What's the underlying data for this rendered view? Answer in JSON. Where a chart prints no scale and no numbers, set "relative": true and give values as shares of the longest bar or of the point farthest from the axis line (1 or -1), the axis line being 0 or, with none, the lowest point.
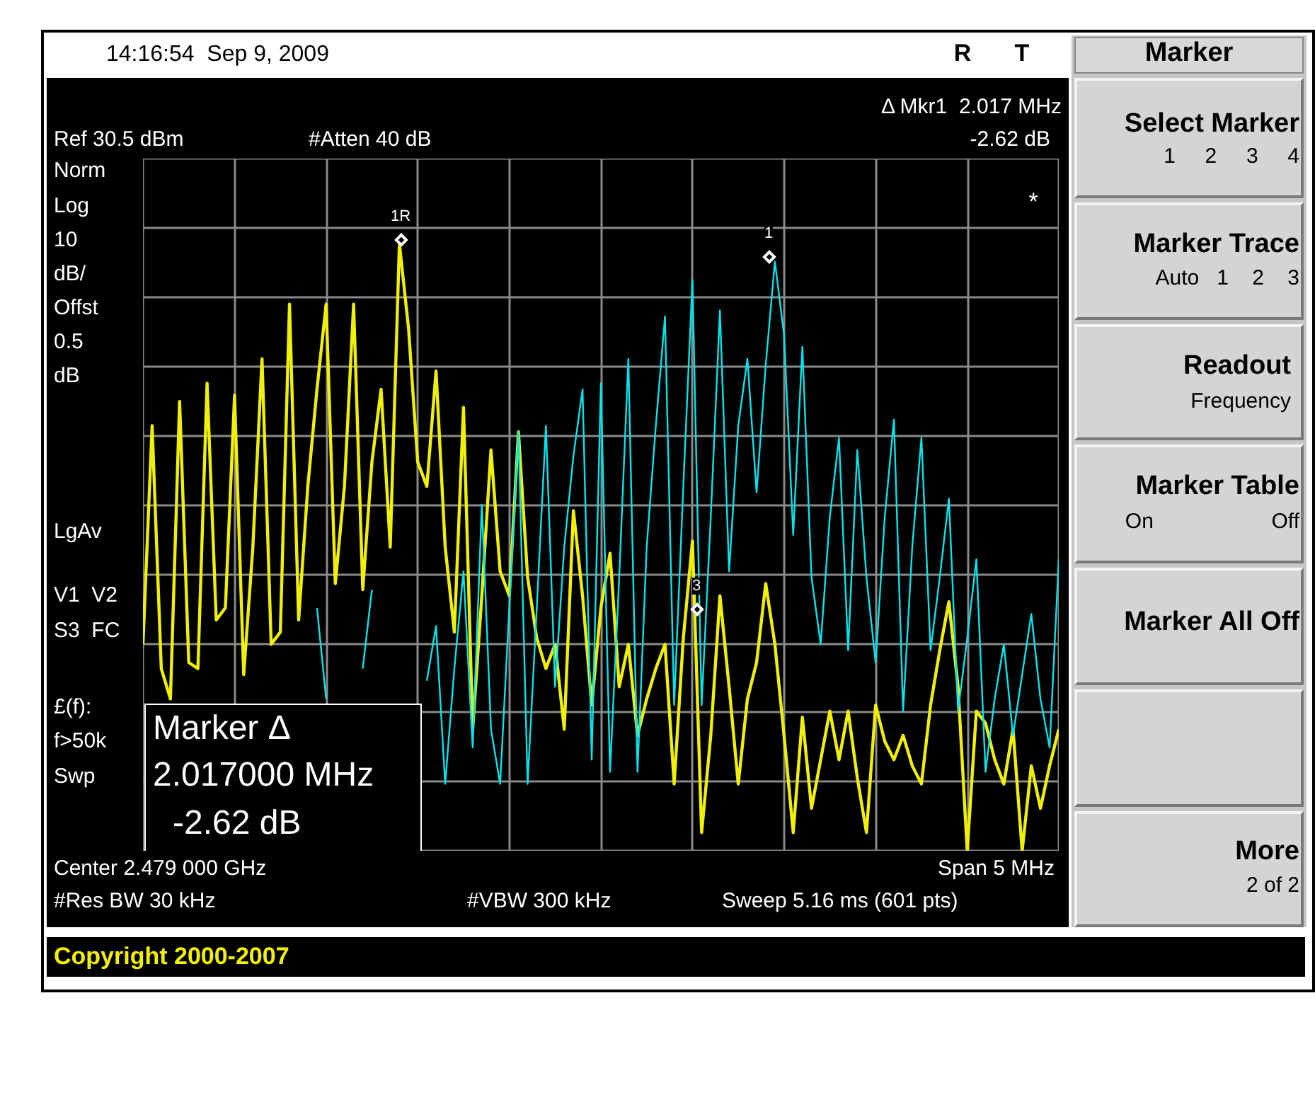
{
  "chart_data": {
    "type": "line",
    "relative": true,
    "grid": true,
    "tick_labels": false,
    "categories": [
      null,
      null,
      null,
      null,
      null,
      null,
      null,
      null,
      null,
      null,
      null,
      null,
      null,
      null,
      null,
      null,
      null,
      null,
      null,
      null,
      null,
      null,
      null,
      null,
      null,
      null,
      null,
      null,
      null,
      null,
      null,
      null,
      null,
      null,
      null,
      null,
      null,
      null,
      null,
      null,
      null,
      null,
      null,
      null,
      null,
      null,
      null,
      null,
      null,
      null,
      null,
      null,
      null,
      null,
      null,
      null,
      null,
      null,
      null,
      null,
      null,
      null,
      null,
      null,
      null,
      null,
      null,
      null,
      null,
      null,
      null,
      null,
      null,
      null,
      null,
      null,
      null,
      null,
      null,
      null,
      null,
      null,
      null,
      null,
      null,
      null,
      null,
      null,
      null,
      null,
      null,
      null,
      null,
      null,
      null,
      null,
      null,
      null,
      null,
      null,
      null
    ],
    "series": [
      {
        "color": "#f0f000",
        "values": [
          0.34,
          0.7,
          0.3,
          0.25,
          0.74,
          0.31,
          0.3,
          0.77,
          0.38,
          0.4,
          0.75,
          0.29,
          0.5,
          0.81,
          0.34,
          0.36,
          0.9,
          0.38,
          0.6,
          0.76,
          0.9,
          0.44,
          0.6,
          0.9,
          0.43,
          0.64,
          0.76,
          0.5,
          1,
          0.86,
          0.64,
          0.6,
          0.79,
          0.5,
          0.36,
          0.73,
          0.2,
          0.42,
          0.66,
          0.46,
          0.42,
          0.69,
          0.45,
          0.35,
          0.3,
          0.34,
          0.2,
          0.56,
          0.42,
          0.24,
          0.4,
          0.49,
          0.27,
          0.34,
          0.19,
          0.25,
          0.3,
          0.34,
          0.11,
          0.35,
          0.51,
          0.03,
          0.19,
          0.42,
          0.27,
          0.11,
          0.25,
          0.31,
          0.44,
          0.34,
          0.19,
          0.03,
          0.22,
          0.07,
          0.15,
          0.23,
          0.15,
          0.23,
          0.12,
          0.03,
          0.24,
          0.18,
          0.15,
          0.19,
          0.14,
          0.11,
          0.24,
          0.33,
          0.41,
          0.27,
          0,
          0.23,
          0.21,
          0.15,
          0.11,
          0.2,
          0,
          0.14,
          0.07,
          0.14,
          0.2
        ]
      },
      {
        "color": "#00e5ee",
        "values": [
          null,
          null,
          null,
          null,
          null,
          null,
          null,
          null,
          null,
          null,
          null,
          null,
          null,
          null,
          null,
          null,
          null,
          null,
          null,
          0.4,
          0.25,
          null,
          null,
          null,
          0.3,
          0.43,
          null,
          null,
          null,
          null,
          null,
          0.28,
          0.37,
          0.11,
          0.3,
          0.46,
          0.17,
          0.57,
          0.2,
          0.11,
          0.4,
          0.69,
          0.11,
          0.4,
          0.7,
          0.27,
          0.5,
          0.65,
          0.76,
          0.15,
          0.77,
          0.13,
          0.45,
          0.81,
          0.13,
          0.5,
          0.7,
          0.88,
          0.24,
          0.6,
          0.94,
          0.24,
          0.55,
          0.89,
          0.46,
          0.7,
          0.81,
          0.59,
          0.8,
          0.97,
          0.85,
          0.52,
          0.83,
          0.45,
          0.34,
          0.55,
          0.68,
          0.33,
          0.66,
          0.45,
          0.31,
          0.55,
          0.71,
          0.23,
          0.5,
          0.68,
          0.33,
          0.45,
          0.58,
          0.23,
          0.35,
          0.48,
          0.13,
          0.25,
          0.34,
          0.19,
          0.29,
          0.39,
          0.25,
          0.17,
          0.48
        ]
      }
    ],
    "annotations": [
      "14:16:54  Sep 9, 2009",
      "R",
      "T",
      "Ref 30.5 dBm",
      "#Atten 40 dB",
      "Δ Mkr1  2.017 MHz",
      "-2.62 dB",
      "Norm",
      "Log",
      "10",
      "dB/",
      "Offst",
      "0.5",
      "dB",
      "LgAv",
      "V1  V2",
      "S3  FC",
      "£(f):",
      "f>50k",
      "Swp",
      "*",
      "Marker Δ",
      "2.017000 MHz",
      "-2.62 dB",
      "Center 2.479 000 GHz",
      "Span 5 MHz",
      "#Res BW 30 kHz",
      "#VBW 300 kHz",
      "Sweep 5.16 ms (601 pts)",
      "Copyright 2000-2007",
      "Marker",
      "Select Marker",
      "1     2     3     4",
      "Marker Trace",
      "Auto   1    2    3",
      "Readout",
      "Frequency",
      "Marker Table",
      "On                    Off",
      "Marker All Off",
      "More",
      "2 of 2",
      "1R",
      "1",
      "3"
    ]
  }
}
